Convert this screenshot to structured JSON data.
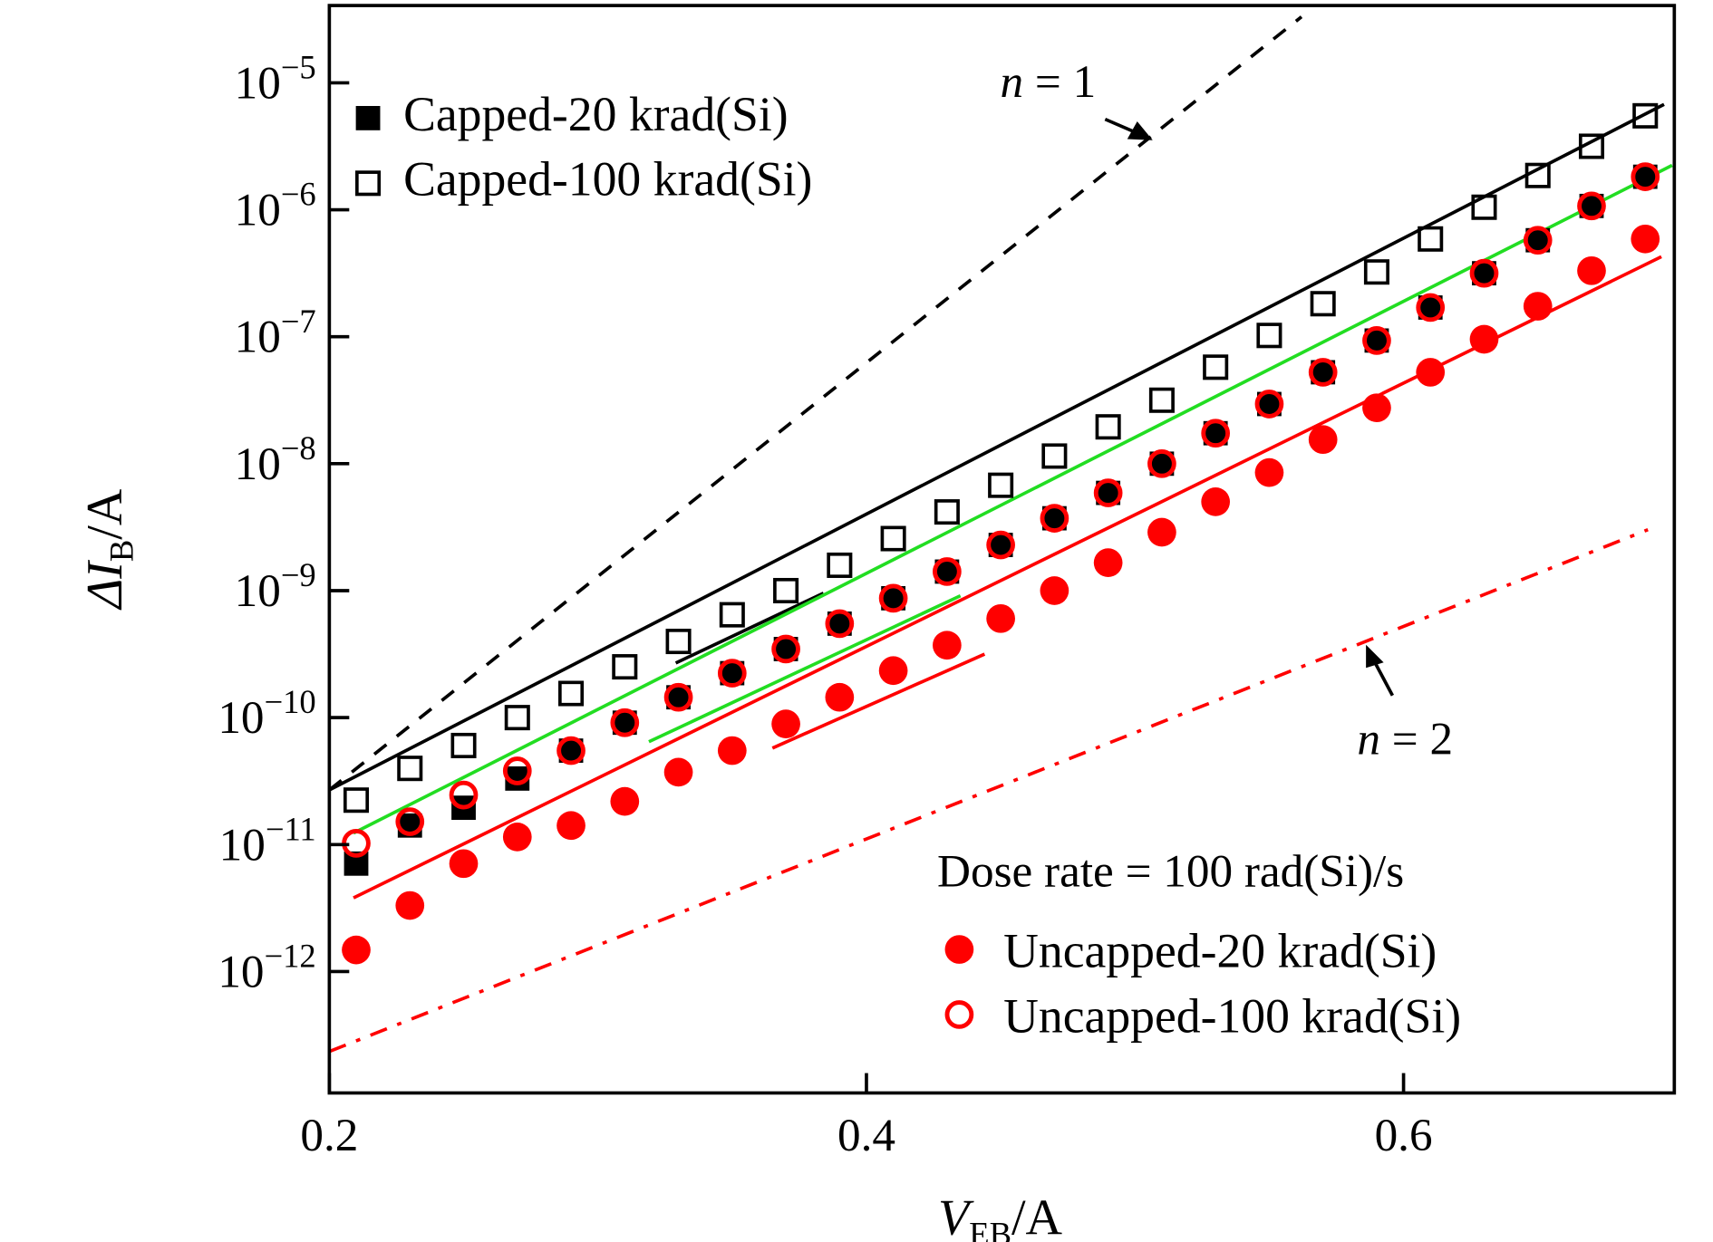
{
  "chart_data": {
    "type": "scatter",
    "title": "",
    "xlabel": "V_EB/A",
    "xlabel_main": "V",
    "xlabel_sub": "EB",
    "xlabel_unit": "/A",
    "ylabel": "ΔI_B/A",
    "ylabel_main": "ΔI",
    "ylabel_sub": "B",
    "ylabel_unit": "/A",
    "yscale": "log",
    "xlim": [
      0.2,
      0.7
    ],
    "ylim_log10": [
      -12.96,
      -4.39
    ],
    "x_ticks": [
      "0.2",
      "0.4",
      "0.6"
    ],
    "x_tick_values": [
      0.2,
      0.4,
      0.6
    ],
    "y_ticks": [
      {
        "base": "10",
        "exp": "−5",
        "log10": -5
      },
      {
        "base": "10",
        "exp": "−6",
        "log10": -6
      },
      {
        "base": "10",
        "exp": "−7",
        "log10": -7
      },
      {
        "base": "10",
        "exp": "−8",
        "log10": -8
      },
      {
        "base": "10",
        "exp": "−9",
        "log10": -9
      },
      {
        "base": "10",
        "exp": "−10",
        "log10": -10
      },
      {
        "base": "10",
        "exp": "−11",
        "log10": -11
      },
      {
        "base": "10",
        "exp": "−12",
        "log10": -12
      }
    ],
    "x": [
      0.21,
      0.23,
      0.25,
      0.27,
      0.29,
      0.31,
      0.33,
      0.35,
      0.37,
      0.39,
      0.41,
      0.43,
      0.45,
      0.47,
      0.49,
      0.51,
      0.53,
      0.55,
      0.57,
      0.59,
      0.61,
      0.63,
      0.65,
      0.67,
      0.69
    ],
    "series": [
      {
        "name": "Capped-20 krad(Si)",
        "marker": "filled-square",
        "color": "#000000",
        "log10_y": [
          -11.15,
          -10.85,
          -10.71,
          -10.48,
          -10.26,
          -10.04,
          -9.84,
          -9.65,
          -9.46,
          -9.26,
          -9.06,
          -8.85,
          -8.64,
          -8.43,
          -8.23,
          -8.0,
          -7.76,
          -7.53,
          -7.28,
          -7.03,
          -6.77,
          -6.5,
          -6.24,
          -5.97,
          -5.74
        ]
      },
      {
        "name": "Capped-100 krad(Si)",
        "marker": "open-square",
        "color": "#000000",
        "log10_y": [
          -10.65,
          -10.4,
          -10.22,
          -10.0,
          -9.81,
          -9.6,
          -9.4,
          -9.19,
          -9.0,
          -8.8,
          -8.59,
          -8.38,
          -8.17,
          -7.94,
          -7.71,
          -7.5,
          -7.24,
          -6.99,
          -6.74,
          -6.49,
          -6.23,
          -5.98,
          -5.73,
          -5.5,
          -5.26
        ]
      },
      {
        "name": "Uncapped-20 krad(Si)",
        "marker": "filled-circle",
        "color": "#ff0000",
        "log10_y": [
          -11.83,
          -11.48,
          -11.15,
          -10.94,
          -10.85,
          -10.66,
          -10.43,
          -10.26,
          -10.05,
          -9.84,
          -9.63,
          -9.43,
          -9.22,
          -9.0,
          -8.78,
          -8.54,
          -8.3,
          -8.07,
          -7.81,
          -7.56,
          -7.28,
          -7.02,
          -6.76,
          -6.48,
          -6.23
        ]
      },
      {
        "name": "Uncapped-100 krad(Si)",
        "marker": "open-circle",
        "color": "#ff0000",
        "log10_y": [
          -10.99,
          -10.82,
          -10.61,
          -10.42,
          -10.26,
          -10.04,
          -9.84,
          -9.65,
          -9.46,
          -9.26,
          -9.06,
          -8.85,
          -8.64,
          -8.43,
          -8.23,
          -8.0,
          -7.76,
          -7.53,
          -7.28,
          -7.03,
          -6.77,
          -6.5,
          -6.24,
          -5.97,
          -5.74
        ]
      }
    ],
    "fit_lines": [
      {
        "name": "capped-fit",
        "color": "#000000",
        "style": "solid",
        "x": [
          0.2,
          0.697
        ],
        "log10_y": [
          -10.57,
          -5.17
        ]
      },
      {
        "name": "capped-low-fit",
        "color": "#000000",
        "style": "solid",
        "x": [
          0.329,
          0.384
        ],
        "log10_y": [
          -9.57,
          -9.02
        ]
      },
      {
        "name": "uncapped-100-fit",
        "color": "#22dd22",
        "style": "solid",
        "x": [
          0.209,
          0.7
        ],
        "log10_y": [
          -10.91,
          -5.65
        ]
      },
      {
        "name": "uncapped-100-low-fit",
        "color": "#22dd22",
        "style": "solid",
        "x": [
          0.319,
          0.435
        ],
        "log10_y": [
          -10.19,
          -9.04
        ]
      },
      {
        "name": "uncapped-20-fit",
        "color": "#ff0000",
        "style": "solid",
        "x": [
          0.209,
          0.696
        ],
        "log10_y": [
          -11.42,
          -6.37
        ]
      },
      {
        "name": "uncapped-20-low-fit",
        "color": "#ff0000",
        "style": "solid",
        "x": [
          0.365,
          0.444
        ],
        "log10_y": [
          -10.24,
          -9.5
        ]
      },
      {
        "name": "ideality-n1",
        "color": "#000000",
        "style": "dashed",
        "x": [
          0.2,
          0.562
        ],
        "log10_y": [
          -10.57,
          -4.48
        ]
      },
      {
        "name": "ideality-n2",
        "color": "#ff0000",
        "style": "dashdot",
        "x": [
          0.2,
          0.691
        ],
        "log10_y": [
          -12.63,
          -8.52
        ]
      }
    ],
    "annotations": {
      "n1": {
        "var": "n",
        "text": " = 1"
      },
      "n2": {
        "var": "n",
        "text": " = 2"
      },
      "dose_rate": "Dose rate = 100 rad(Si)/s"
    },
    "legend": {
      "top_left": [
        "Capped-20 krad(Si)",
        "Capped-100 krad(Si)"
      ],
      "bottom_right": [
        "Uncapped-20 krad(Si)",
        "Uncapped-100 krad(Si)"
      ]
    },
    "grid": false
  }
}
